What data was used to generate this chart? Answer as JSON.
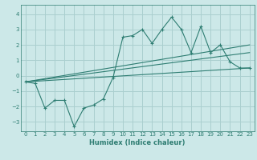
{
  "xlabel": "Humidex (Indice chaleur)",
  "bg_color": "#cce8e8",
  "line_color": "#2e7d72",
  "grid_color": "#aacfcf",
  "xlim": [
    -0.5,
    23.5
  ],
  "ylim": [
    -3.6,
    4.6
  ],
  "yticks": [
    -3,
    -2,
    -1,
    0,
    1,
    2,
    3,
    4
  ],
  "xticks": [
    0,
    1,
    2,
    3,
    4,
    5,
    6,
    7,
    8,
    9,
    10,
    11,
    12,
    13,
    14,
    15,
    16,
    17,
    18,
    19,
    20,
    21,
    22,
    23
  ],
  "series1_x": [
    0,
    1,
    2,
    3,
    4,
    5,
    6,
    7,
    8,
    9,
    10,
    11,
    12,
    13,
    14,
    15,
    16,
    17,
    18,
    19,
    20,
    21,
    22,
    23
  ],
  "series1_y": [
    -0.4,
    -0.5,
    -2.1,
    -1.6,
    -1.6,
    -3.3,
    -2.1,
    -1.9,
    -1.5,
    -0.1,
    2.5,
    2.6,
    3.0,
    2.1,
    3.0,
    3.8,
    3.0,
    1.5,
    3.2,
    1.5,
    2.0,
    0.9,
    0.5,
    0.5
  ],
  "line2_x": [
    0,
    23
  ],
  "line2_y": [
    -0.4,
    0.5
  ],
  "line3_x": [
    0,
    23
  ],
  "line3_y": [
    -0.4,
    1.5
  ],
  "line4_x": [
    0,
    23
  ],
  "line4_y": [
    -0.4,
    2.0
  ]
}
